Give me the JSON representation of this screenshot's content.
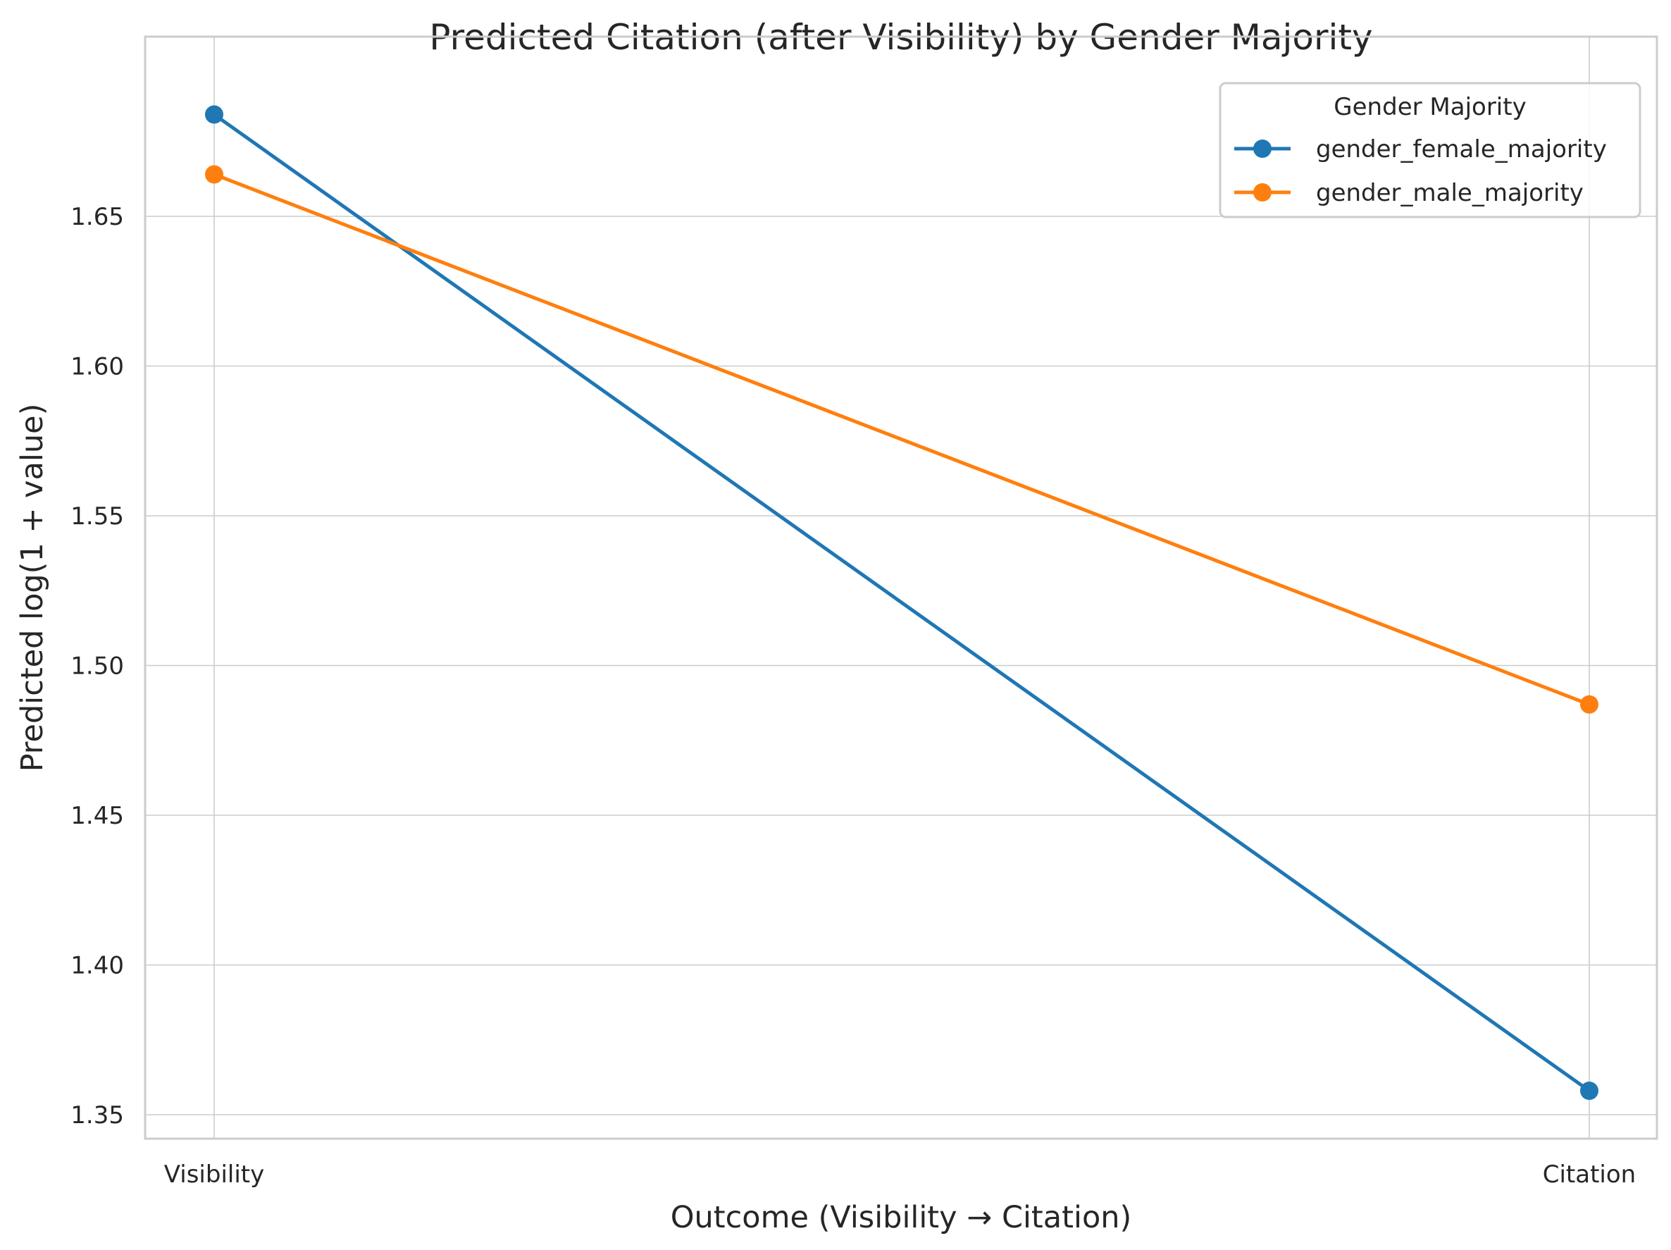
{
  "chart_data": {
    "type": "line",
    "title": "Predicted Citation (after Visibility) by Gender Majority",
    "xlabel": "Outcome (Visibility → Citation)",
    "ylabel": "Predicted log(1 + value)",
    "categories": [
      "Visibility",
      "Citation"
    ],
    "ylim": [
      1.342,
      1.71
    ],
    "yticks": [
      1.35,
      1.4,
      1.45,
      1.5,
      1.55,
      1.6,
      1.65
    ],
    "ytick_labels": [
      "1.35",
      "1.40",
      "1.45",
      "1.50",
      "1.55",
      "1.60",
      "1.65"
    ],
    "grid": true,
    "legend": {
      "title": "Gender Majority",
      "placement": "top-right"
    },
    "series": [
      {
        "name": "gender_female_majority",
        "values": [
          1.684,
          1.358
        ],
        "color": "#1f77b4"
      },
      {
        "name": "gender_male_majority",
        "values": [
          1.664,
          1.487
        ],
        "color": "#ff7f0e"
      }
    ]
  }
}
